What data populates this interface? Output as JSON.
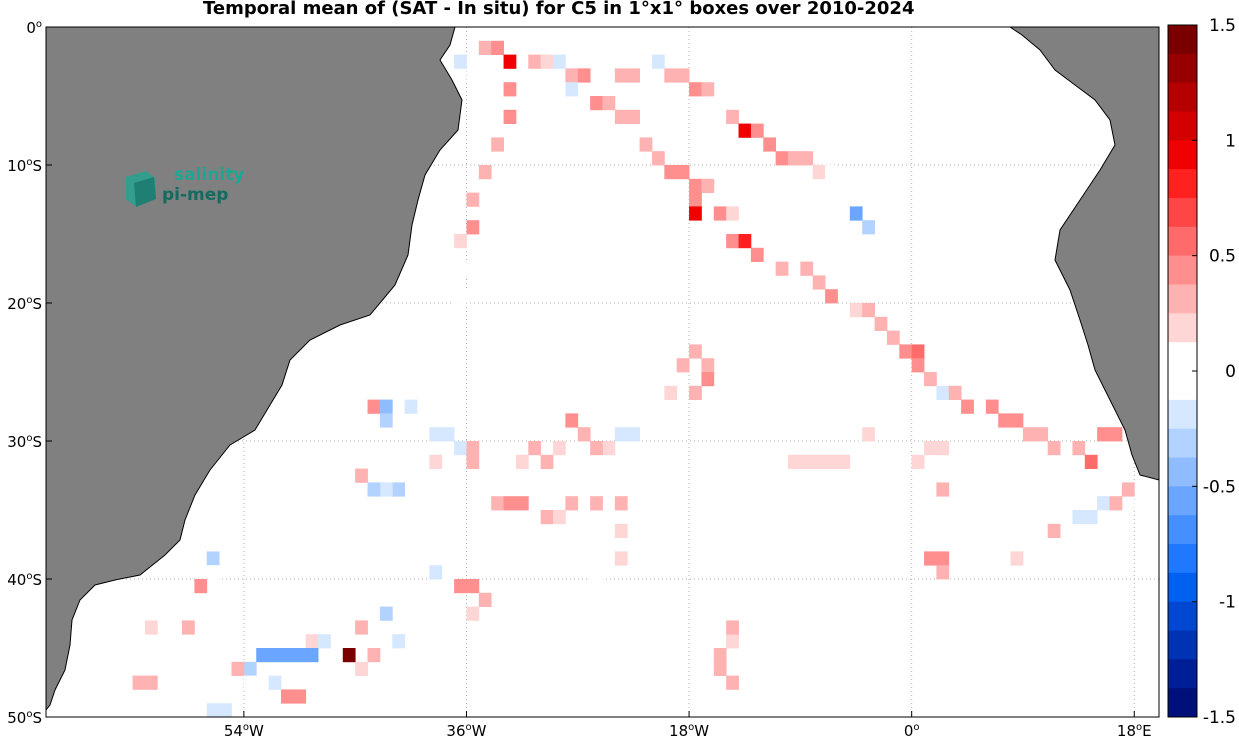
{
  "title": "Temporal mean of (SAT - In situ) for C5 in 1°x1° boxes over 2010-2024",
  "logo": {
    "line1": "salinity",
    "line2": "pi-mep",
    "icon": "salinity-pimep-logo-icon"
  },
  "colors": {
    "land": "#808080",
    "ocean": "#ffffff",
    "grid": "#b0b0b0"
  },
  "map": {
    "lon_range": [
      -70,
      20
    ],
    "lat_range": [
      -50,
      0
    ],
    "x_ticks": [
      {
        "value": -54,
        "label": "54",
        "sup": "o",
        "suffix": "W"
      },
      {
        "value": -36,
        "label": "36",
        "sup": "o",
        "suffix": "W"
      },
      {
        "value": -18,
        "label": "18",
        "sup": "o",
        "suffix": "W"
      },
      {
        "value": 0,
        "label": "0",
        "sup": "o",
        "suffix": ""
      },
      {
        "value": 18,
        "label": "18",
        "sup": "o",
        "suffix": "E"
      }
    ],
    "y_ticks": [
      {
        "value": 0,
        "label": "0",
        "sup": "o",
        "suffix": ""
      },
      {
        "value": -10,
        "label": "10",
        "sup": "o",
        "suffix": "S"
      },
      {
        "value": -20,
        "label": "20",
        "sup": "o",
        "suffix": "S"
      },
      {
        "value": -30,
        "label": "30",
        "sup": "o",
        "suffix": "S"
      },
      {
        "value": -40,
        "label": "40",
        "sup": "o",
        "suffix": "S"
      },
      {
        "value": -50,
        "label": "50",
        "sup": "o",
        "suffix": "S"
      }
    ]
  },
  "colorbar": {
    "min": -1.5,
    "max": 1.5,
    "ticks": [
      "1.5",
      "1",
      "0.5",
      "0",
      "-0.5",
      "-1",
      "-1.5"
    ],
    "colors": [
      "#7a0000",
      "#960000",
      "#b40000",
      "#d20000",
      "#f00000",
      "#ff2020",
      "#ff4646",
      "#ff6a6a",
      "#ff8e8e",
      "#ffb2b2",
      "#ffd6d6",
      "#ffffff",
      "#ffffff",
      "#d6e8ff",
      "#b2d2ff",
      "#8ebcff",
      "#6aa6ff",
      "#468fff",
      "#2078ff",
      "#0060f0",
      "#0048d2",
      "#0032b4",
      "#001e96",
      "#00107a"
    ]
  },
  "chart_data": {
    "type": "heatmap",
    "title": "Temporal mean of (SAT - In situ) for C5 in 1°x1° boxes over 2010-2024",
    "x": "longitude",
    "y": "latitude",
    "xlim": [
      -70,
      20
    ],
    "ylim": [
      -50,
      0
    ],
    "clim": [
      -1.5,
      1.5
    ],
    "cells": [
      [
        -35,
        -1,
        0.3
      ],
      [
        -34,
        -1,
        0.4
      ],
      [
        -33,
        -2,
        1.0
      ],
      [
        -31,
        -2,
        0.3
      ],
      [
        -30,
        -2,
        0.2
      ],
      [
        -29,
        -2,
        -0.2
      ],
      [
        -28,
        -3,
        0.3
      ],
      [
        -27,
        -3,
        0.5
      ],
      [
        -28,
        -4,
        -0.2
      ],
      [
        -37,
        -2,
        -0.2
      ],
      [
        -36,
        -3,
        -0.1
      ],
      [
        -24,
        -3,
        0.3
      ],
      [
        -23,
        -3,
        0.3
      ],
      [
        -21,
        -2,
        -0.2
      ],
      [
        -20,
        -3,
        0.3
      ],
      [
        -19,
        -3,
        0.3
      ],
      [
        -18,
        -4,
        0.4
      ],
      [
        -17,
        -4,
        0.3
      ],
      [
        -16,
        -5,
        -0.1
      ],
      [
        -15,
        -6,
        0.3
      ],
      [
        -14,
        -7,
        1.0
      ],
      [
        -13,
        -7,
        0.4
      ],
      [
        -26,
        -5,
        0.4
      ],
      [
        -25,
        -5,
        0.3
      ],
      [
        -24,
        -6,
        0.3
      ],
      [
        -23,
        -6,
        0.3
      ],
      [
        -22,
        -8,
        0.3
      ],
      [
        -21,
        -9,
        0.3
      ],
      [
        -20,
        -10,
        0.5
      ],
      [
        -19,
        -10,
        0.5
      ],
      [
        -18,
        -11,
        0.4
      ],
      [
        -17,
        -11,
        0.3
      ],
      [
        -12,
        -8,
        0.5
      ],
      [
        -11,
        -9,
        0.5
      ],
      [
        -10,
        -9,
        0.3
      ],
      [
        -9,
        -9,
        0.3
      ],
      [
        -8,
        -10,
        0.2
      ],
      [
        -7,
        -10,
        -0.1
      ],
      [
        -5,
        -13,
        -0.5
      ],
      [
        -4,
        -14,
        -0.3
      ],
      [
        -3,
        -15,
        -0.1
      ],
      [
        -33,
        -4,
        0.5
      ],
      [
        -33,
        -6,
        0.4
      ],
      [
        -34,
        -8,
        0.3
      ],
      [
        -35,
        -10,
        0.3
      ],
      [
        -36,
        -12,
        0.3
      ],
      [
        -36,
        -14,
        0.4
      ],
      [
        -37,
        -15,
        0.2
      ],
      [
        -37,
        -17,
        -0.1
      ],
      [
        -37,
        -19,
        -0.1
      ],
      [
        -18,
        -12,
        0.4
      ],
      [
        -18,
        -13,
        1.0
      ],
      [
        -16,
        -13,
        0.4
      ],
      [
        -15,
        -13,
        0.2
      ],
      [
        -15,
        -15,
        0.4
      ],
      [
        -14,
        -15,
        0.8
      ],
      [
        -13,
        -16,
        0.4
      ],
      [
        -11,
        -17,
        0.3
      ],
      [
        -9,
        -17,
        0.3
      ],
      [
        -8,
        -18,
        0.3
      ],
      [
        -7,
        -19,
        0.5
      ],
      [
        -5,
        -20,
        0.2
      ],
      [
        -4,
        -20,
        0.3
      ],
      [
        -3,
        -21,
        0.3
      ],
      [
        -2,
        -22,
        0.3
      ],
      [
        -1,
        -23,
        0.4
      ],
      [
        0,
        -23,
        0.6
      ],
      [
        0,
        -24,
        0.4
      ],
      [
        1,
        -25,
        0.3
      ],
      [
        2,
        -26,
        -0.2
      ],
      [
        3,
        -26,
        0.3
      ],
      [
        4,
        -27,
        0.4
      ],
      [
        6,
        -27,
        0.4
      ],
      [
        7,
        -28,
        0.5
      ],
      [
        8,
        -28,
        0.5
      ],
      [
        9,
        -29,
        0.3
      ],
      [
        10,
        -29,
        0.3
      ],
      [
        11,
        -30,
        0.3
      ],
      [
        13,
        -30,
        0.3
      ],
      [
        14,
        -31,
        0.6
      ],
      [
        15,
        -29,
        0.4
      ],
      [
        16,
        -29,
        0.4
      ],
      [
        -4,
        -29,
        0.2
      ],
      [
        -6,
        -31,
        0.2
      ],
      [
        -7,
        -31,
        0.2
      ],
      [
        -8,
        -31,
        0.2
      ],
      [
        -9,
        -31,
        0.2
      ],
      [
        -10,
        -31,
        0.2
      ],
      [
        0,
        -31,
        0.2
      ],
      [
        1,
        -30,
        0.2
      ],
      [
        2,
        -30,
        0.2
      ],
      [
        2,
        -33,
        0.3
      ],
      [
        -19,
        -24,
        0.3
      ],
      [
        -18,
        -23,
        0.3
      ],
      [
        -17,
        -24,
        0.3
      ],
      [
        -17,
        -25,
        0.4
      ],
      [
        -18,
        -26,
        0.3
      ],
      [
        -20,
        -26,
        0.2
      ],
      [
        -21,
        -27,
        -0.1
      ],
      [
        -22,
        -28,
        -0.1
      ],
      [
        -23,
        -29,
        -0.2
      ],
      [
        -24,
        -29,
        -0.2
      ],
      [
        -25,
        -30,
        0.2
      ],
      [
        -26,
        -30,
        0.3
      ],
      [
        -27,
        -29,
        0.3
      ],
      [
        -28,
        -28,
        0.4
      ],
      [
        -29,
        -30,
        0.2
      ],
      [
        -30,
        -31,
        0.3
      ],
      [
        -31,
        -30,
        0.3
      ],
      [
        -32,
        -31,
        0.2
      ],
      [
        -44,
        -27,
        0.4
      ],
      [
        -43,
        -27,
        -0.4
      ],
      [
        -43,
        -28,
        -0.3
      ],
      [
        -41,
        -27,
        -0.2
      ],
      [
        -40,
        -28,
        -0.1
      ],
      [
        -39,
        -29,
        -0.2
      ],
      [
        -38,
        -29,
        -0.2
      ],
      [
        -37,
        -30,
        -0.2
      ],
      [
        -36,
        -30,
        0.3
      ],
      [
        -36,
        -31,
        0.3
      ],
      [
        -38,
        -32,
        -0.1
      ],
      [
        -39,
        -31,
        0.2
      ],
      [
        -42,
        -33,
        -0.3
      ],
      [
        -43,
        -33,
        -0.2
      ],
      [
        -44,
        -33,
        -0.3
      ],
      [
        -45,
        -32,
        0.3
      ],
      [
        -34,
        -34,
        0.3
      ],
      [
        -33,
        -34,
        0.4
      ],
      [
        -32,
        -34,
        0.4
      ],
      [
        -31,
        -35,
        -0.1
      ],
      [
        -30,
        -35,
        0.3
      ],
      [
        -29,
        -35,
        0.2
      ],
      [
        -28,
        -34,
        0.3
      ],
      [
        -26,
        -34,
        0.3
      ],
      [
        -24,
        -34,
        0.3
      ],
      [
        -24,
        -36,
        0.2
      ],
      [
        -24,
        -38,
        0.2
      ],
      [
        -37,
        -40,
        0.4
      ],
      [
        -36,
        -40,
        0.5
      ],
      [
        -35,
        -41,
        0.3
      ],
      [
        -36,
        -42,
        0.2
      ],
      [
        -38,
        -39,
        -0.1
      ],
      [
        -39,
        -39,
        -0.2
      ],
      [
        -42,
        -44,
        -0.2
      ],
      [
        -43,
        -42,
        -0.3
      ],
      [
        -45,
        -43,
        0.3
      ],
      [
        -44,
        -45,
        0.3
      ],
      [
        -45,
        -46,
        0.2
      ],
      [
        -46,
        -45,
        1.5
      ],
      [
        -49,
        -44,
        0.2
      ],
      [
        -48,
        -44,
        -0.2
      ],
      [
        -49,
        -45,
        -0.5
      ],
      [
        -50,
        -45,
        -0.5
      ],
      [
        -51,
        -45,
        -0.6
      ],
      [
        -52,
        -45,
        -0.5
      ],
      [
        -53,
        -45,
        -0.6
      ],
      [
        -54,
        -46,
        -0.3
      ],
      [
        -55,
        -46,
        0.3
      ],
      [
        -54,
        -47,
        -0.1
      ],
      [
        -52,
        -47,
        -0.2
      ],
      [
        -51,
        -48,
        0.5
      ],
      [
        -50,
        -48,
        0.4
      ],
      [
        -57,
        -38,
        -0.3
      ],
      [
        -57,
        -39,
        -0.1
      ],
      [
        -58,
        -40,
        0.4
      ],
      [
        -59,
        -43,
        0.3
      ],
      [
        -62,
        -43,
        0.2
      ],
      [
        -63,
        -47,
        0.3
      ],
      [
        -62,
        -47,
        0.3
      ],
      [
        -57,
        -49,
        -0.2
      ],
      [
        -56,
        -49,
        -0.2
      ],
      [
        -26,
        -39,
        -0.1
      ],
      [
        -28,
        -42,
        -0.1
      ],
      [
        -15,
        -47,
        0.3
      ],
      [
        -16,
        -46,
        0.3
      ],
      [
        -16,
        -45,
        0.3
      ],
      [
        -15,
        -44,
        0.2
      ],
      [
        -15,
        -43,
        0.3
      ],
      [
        1,
        -38,
        0.4
      ],
      [
        2,
        -38,
        0.4
      ],
      [
        2,
        -39,
        0.3
      ],
      [
        1,
        -36,
        -0.1
      ],
      [
        8,
        -38,
        0.2
      ],
      [
        11,
        -36,
        0.3
      ],
      [
        12,
        -35,
        -0.1
      ],
      [
        13,
        -35,
        -0.2
      ],
      [
        14,
        -35,
        -0.2
      ],
      [
        15,
        -34,
        -0.2
      ],
      [
        16,
        -34,
        0.3
      ],
      [
        17,
        -33,
        0.3
      ],
      [
        18,
        -34,
        -0.1
      ]
    ]
  }
}
